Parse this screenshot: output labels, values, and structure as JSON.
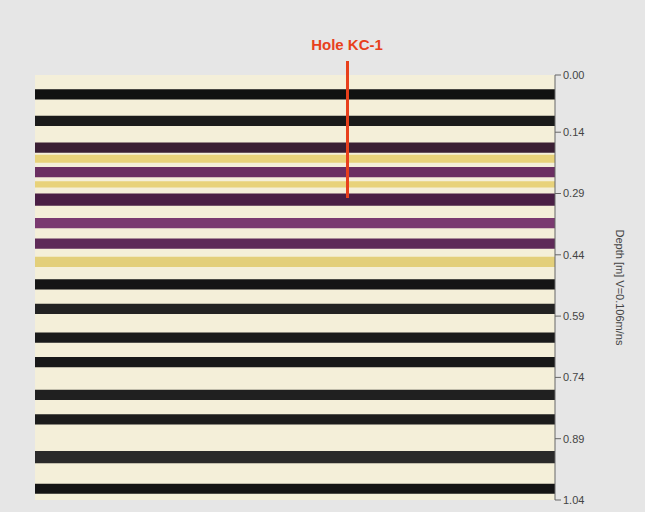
{
  "chart_data": {
    "type": "radargram",
    "ylabel": "Depth [m] V=0.106m/ns",
    "ylim": [
      0,
      1.04
    ],
    "yticks": [
      {
        "value": 0,
        "label": "0.00"
      },
      0.14,
      0.29,
      0.44,
      0.59,
      0.74,
      0.89,
      1.04
    ],
    "tick_labels": "y",
    "annotations": [
      {
        "text": "Hole KC-1",
        "depth": 0.3,
        "color": "#e8401c"
      }
    ],
    "bands": [
      {
        "from": 0.035,
        "to": 0.06,
        "color": "#111111"
      },
      {
        "from": 0.1,
        "to": 0.125,
        "color": "#1a1a1a"
      },
      {
        "from": 0.165,
        "to": 0.19,
        "color": "#3a1f33"
      },
      {
        "from": 0.195,
        "to": 0.215,
        "color": "#e8d27a"
      },
      {
        "from": 0.225,
        "to": 0.25,
        "color": "#6b2f62"
      },
      {
        "from": 0.26,
        "to": 0.275,
        "color": "#e8d27a"
      },
      {
        "from": 0.29,
        "to": 0.32,
        "color": "#4a1f45"
      },
      {
        "from": 0.35,
        "to": 0.375,
        "color": "#7a3a70"
      },
      {
        "from": 0.4,
        "to": 0.425,
        "color": "#5e2a58"
      },
      {
        "from": 0.445,
        "to": 0.47,
        "color": "#e3cf7a"
      },
      {
        "from": 0.5,
        "to": 0.525,
        "color": "#151515"
      },
      {
        "from": 0.56,
        "to": 0.585,
        "color": "#222222"
      },
      {
        "from": 0.63,
        "to": 0.655,
        "color": "#1a1a1a"
      },
      {
        "from": 0.69,
        "to": 0.715,
        "color": "#181818"
      },
      {
        "from": 0.77,
        "to": 0.795,
        "color": "#202020"
      },
      {
        "from": 0.83,
        "to": 0.855,
        "color": "#1c1c1c"
      },
      {
        "from": 0.92,
        "to": 0.95,
        "color": "#2a2a2a"
      },
      {
        "from": 1.0,
        "to": 1.025,
        "color": "#141414"
      }
    ]
  }
}
